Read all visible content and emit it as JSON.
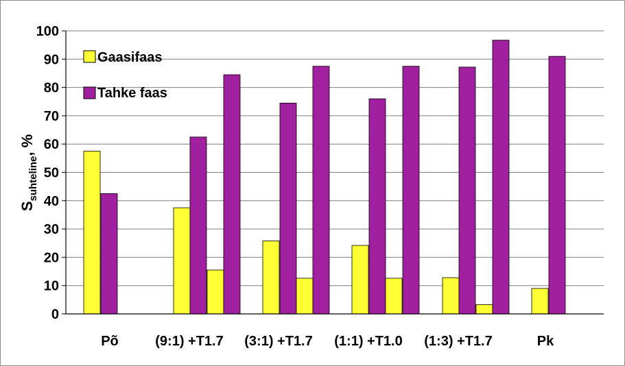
{
  "chart_data": {
    "type": "bar",
    "ylabel_main": "S",
    "ylabel_sub": "suhteline",
    "ylabel_unit": ", %",
    "ylim": [
      0,
      100
    ],
    "yticks": [
      "0",
      "10",
      "20",
      "30",
      "40",
      "50",
      "60",
      "70",
      "80",
      "90",
      "100"
    ],
    "grid": true,
    "legend_position": "top-left",
    "categories": [
      "Põ",
      "(9:1) +T1.7",
      "(3:1) +T1.7",
      "(1:1) +T1.0",
      "(1:3) +T1.7",
      "Pk"
    ],
    "series": [
      {
        "name": "Gaasifaas",
        "color": "#ffff33"
      },
      {
        "name": "Tahke faas",
        "color": "#a020a0"
      }
    ],
    "bars": [
      {
        "category": 0,
        "series": 0,
        "value": 57.5
      },
      {
        "category": 0,
        "series": 1,
        "value": 42.5
      },
      {
        "category": 1,
        "series": 0,
        "value": 37.5
      },
      {
        "category": 1,
        "series": 1,
        "value": 62.5
      },
      {
        "category": 1,
        "series": 0,
        "value": 15.5
      },
      {
        "category": 1,
        "series": 1,
        "value": 84.5
      },
      {
        "category": 2,
        "series": 0,
        "value": 25.8
      },
      {
        "category": 2,
        "series": 1,
        "value": 74.5
      },
      {
        "category": 2,
        "series": 0,
        "value": 12.6
      },
      {
        "category": 2,
        "series": 1,
        "value": 87.5
      },
      {
        "category": 3,
        "series": 0,
        "value": 24.2
      },
      {
        "category": 3,
        "series": 1,
        "value": 76.0
      },
      {
        "category": 3,
        "series": 0,
        "value": 12.6
      },
      {
        "category": 3,
        "series": 1,
        "value": 87.5
      },
      {
        "category": 4,
        "series": 0,
        "value": 12.8
      },
      {
        "category": 4,
        "series": 1,
        "value": 87.2
      },
      {
        "category": 4,
        "series": 0,
        "value": 3.3
      },
      {
        "category": 4,
        "series": 1,
        "value": 96.7
      },
      {
        "category": 5,
        "series": 0,
        "value": 9.0
      },
      {
        "category": 5,
        "series": 1,
        "value": 91.0
      }
    ]
  }
}
